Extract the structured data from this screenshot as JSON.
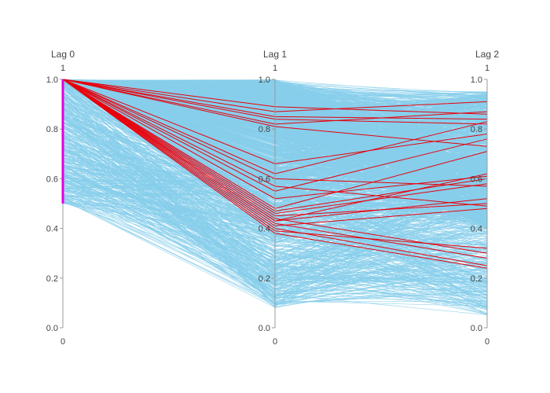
{
  "chart_data": {
    "type": "parallel_coordinates",
    "dimensions": [
      {
        "label": "Lag 0",
        "range_max_label": "1",
        "range_min_label": "0",
        "range": [
          0,
          1
        ],
        "ticks": [
          "0.0",
          "0.2",
          "0.4",
          "0.6",
          "0.8",
          "1.0"
        ],
        "constraint_range": [
          0.5,
          1.0
        ]
      },
      {
        "label": "Lag 1",
        "range_max_label": "1",
        "range_min_label": "0",
        "range": [
          0,
          1
        ],
        "ticks": [
          "0.0",
          "0.2",
          "0.4",
          "0.6",
          "0.8",
          "1.0"
        ]
      },
      {
        "label": "Lag 2",
        "range_max_label": "1",
        "range_min_label": "0",
        "range": [
          0,
          1
        ],
        "ticks": [
          "0.0",
          "0.2",
          "0.4",
          "0.6",
          "0.8",
          "1.0"
        ]
      }
    ],
    "colors": {
      "context_lines": "#87ceeb",
      "highlight_lines": "#e8000b",
      "constraint_bar": "#e000e0",
      "axis": "#9a9a9a"
    },
    "highlighted_series": [
      {
        "values": [
          1.0,
          0.89,
          0.86
        ]
      },
      {
        "values": [
          1.0,
          0.87,
          0.91
        ]
      },
      {
        "values": [
          1.0,
          0.85,
          0.84
        ]
      },
      {
        "values": [
          1.0,
          0.84,
          0.82
        ]
      },
      {
        "values": [
          1.0,
          0.82,
          0.87
        ]
      },
      {
        "values": [
          1.0,
          0.66,
          0.78
        ]
      },
      {
        "values": [
          1.0,
          0.62,
          0.83
        ]
      },
      {
        "values": [
          1.0,
          0.6,
          0.57
        ]
      },
      {
        "values": [
          1.0,
          0.55,
          0.76
        ]
      },
      {
        "values": [
          1.0,
          0.52,
          0.61
        ]
      },
      {
        "values": [
          1.0,
          0.48,
          0.71
        ]
      },
      {
        "values": [
          1.0,
          0.47,
          0.6
        ]
      },
      {
        "values": [
          1.0,
          0.46,
          0.58
        ]
      },
      {
        "values": [
          1.0,
          0.45,
          0.5
        ]
      },
      {
        "values": [
          1.0,
          0.44,
          0.3
        ]
      },
      {
        "values": [
          1.0,
          0.43,
          0.52
        ]
      },
      {
        "values": [
          1.0,
          0.42,
          0.28
        ]
      },
      {
        "values": [
          1.0,
          0.41,
          0.48
        ]
      },
      {
        "values": [
          1.0,
          0.4,
          0.25
        ]
      },
      {
        "values": [
          1.0,
          0.39,
          0.32
        ]
      },
      {
        "values": [
          1.0,
          0.38,
          0.24
        ]
      },
      {
        "values": [
          1.0,
          0.81,
          0.73
        ]
      },
      {
        "values": [
          1.0,
          0.57,
          0.49
        ]
      },
      {
        "values": [
          1.0,
          0.43,
          0.62
        ]
      }
    ],
    "context_series_count": 1500,
    "context_distribution": "high lag-0 values concentrate lag-1/lag-2 near 0.5–1.0; lower lag-0 values fan out down to ~0.08 on lag 1 and ~0.05 on lag 2"
  }
}
